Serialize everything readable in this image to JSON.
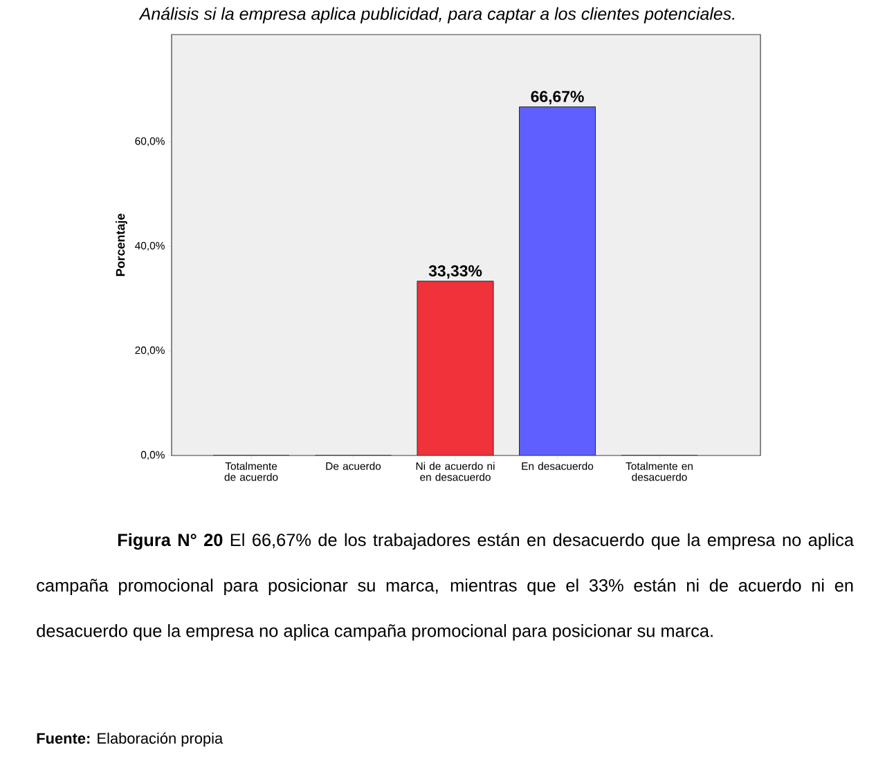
{
  "chart_data": {
    "type": "bar",
    "title": "Análisis si la empresa aplica publicidad, para captar a los clientes potenciales.",
    "ylabel": "Porcentaje",
    "categories": [
      "Totalmente de acuerdo",
      "De acuerdo",
      "Ni de acuerdo ni en desacuerdo",
      "En desacuerdo",
      "Totalmente en desacuerdo"
    ],
    "values": [
      0,
      0,
      33.33,
      66.67,
      0
    ],
    "colors": [
      "#d9d9d9",
      "#d9d9d9",
      "#f0323a",
      "#5f5fff",
      "#d9d9d9"
    ],
    "value_labels": [
      null,
      null,
      "33,33%",
      "66,67%",
      null
    ],
    "ylim": [
      0,
      80.5
    ],
    "yticks": [
      {
        "value": 0,
        "label": "0,0%"
      },
      {
        "value": 20,
        "label": "20,0%"
      },
      {
        "value": 40,
        "label": "40,0%"
      },
      {
        "value": 60,
        "label": "60,0%"
      }
    ],
    "grid": false,
    "annotations": [
      "**Figura N° 20** El 66,67% de los trabajadores están en desacuerdo que la empresa no aplica campaña promocional para posicionar su marca, mientras que el 33% están ni de acuerdo ni en desacuerdo que la empresa no aplica campaña promocional para posicionar su marca.",
      "**Fuente:** Elaboración propia"
    ]
  }
}
